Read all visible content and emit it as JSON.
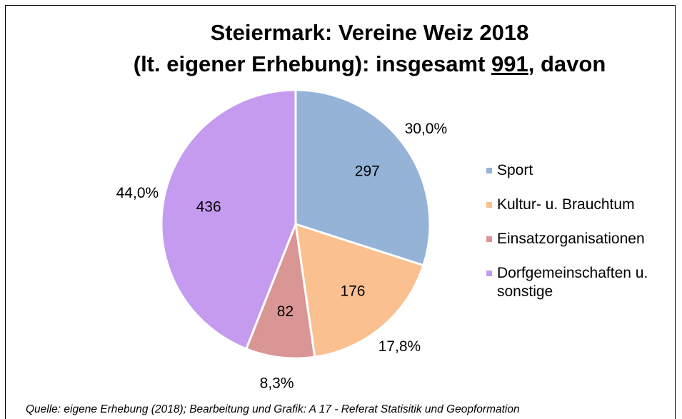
{
  "chart_data": {
    "type": "pie",
    "title": [
      "Steiermark: Vereine Weiz 2018",
      "(lt. eigener Erhebung): insgesamt ",
      "991",
      ", davon"
    ],
    "categories": [
      "Sport",
      "Kultur- u. Brauchtum",
      "Einsatzorganisationen",
      "Dorfgemeinschaften u. sonstige"
    ],
    "values": [
      297,
      176,
      82,
      436
    ],
    "percentages": [
      30.0,
      17.8,
      8.3,
      44.0
    ],
    "percent_labels": [
      "30,0%",
      "17,8%",
      "8,3%",
      "44,0%"
    ],
    "colors": [
      "#95b3d7",
      "#fac090",
      "#d99694",
      "#c49bef"
    ],
    "source": "Quelle: eigene Erhebung (2018); Bearbeitung und Grafik: A 17 - Referat Statisitik und Geopformation"
  }
}
